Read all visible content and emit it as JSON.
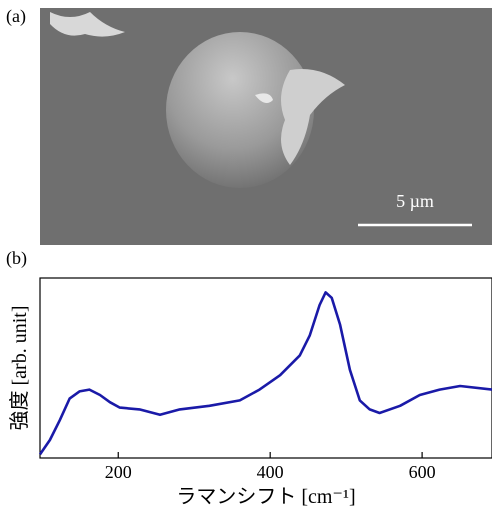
{
  "panel_a": {
    "label": "(a)",
    "scale_bar": "5 µm"
  },
  "panel_b": {
    "label": "(b)"
  },
  "chart_data": {
    "type": "line",
    "x_label": "ラマンシフト [cm⁻¹]",
    "y_label": "強度 [arb. unit]",
    "x": [
      97,
      110,
      123,
      136,
      149,
      162,
      176,
      189,
      202,
      228,
      255,
      281,
      320,
      360,
      386,
      413,
      439,
      452,
      465,
      473,
      481,
      492,
      505,
      518,
      531,
      544,
      571,
      597,
      623,
      650,
      692
    ],
    "values": [
      0.02,
      0.1,
      0.21,
      0.33,
      0.37,
      0.38,
      0.35,
      0.31,
      0.28,
      0.27,
      0.24,
      0.27,
      0.29,
      0.32,
      0.38,
      0.46,
      0.57,
      0.68,
      0.85,
      0.92,
      0.89,
      0.74,
      0.49,
      0.32,
      0.27,
      0.25,
      0.29,
      0.35,
      0.38,
      0.4,
      0.38
    ],
    "color": "#1a1aa8",
    "xlim": [
      97,
      692
    ],
    "ylim": [
      0,
      1
    ],
    "xticks": [
      200,
      400,
      600
    ]
  }
}
